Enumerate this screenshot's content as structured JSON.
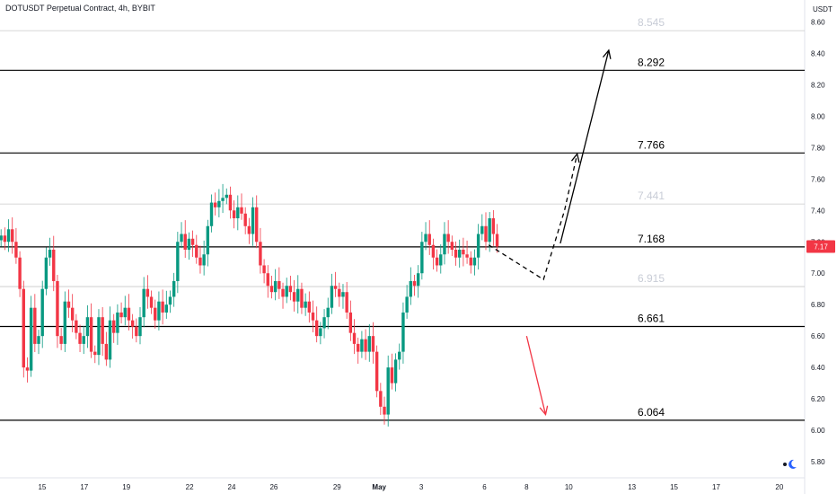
{
  "header": {
    "title": "DOTUSDT Perpetual Contract, 4h, BYBIT"
  },
  "chart_data": {
    "type": "candlestick",
    "title": "DOTUSDT Perpetual Contract, 4h, BYBIT",
    "y_unit": "USDT",
    "ylim": [
      5.72,
      8.66
    ],
    "y_ticks": [
      "8.60",
      "8.40",
      "8.20",
      "8.00",
      "7.80",
      "7.60",
      "7.40",
      "7.20",
      "7.00",
      "6.80",
      "6.60",
      "6.40",
      "6.20",
      "6.00",
      "5.80"
    ],
    "x_tick_labels": [
      "15",
      "17",
      "19",
      "22",
      "24",
      "26",
      "29",
      "May",
      "3",
      "6",
      "8",
      "10",
      "13",
      "15",
      "17",
      "20"
    ],
    "x_tick_days": [
      15,
      17,
      19,
      22,
      24,
      26,
      29,
      31,
      33,
      36,
      38,
      40,
      43,
      45,
      47,
      50
    ],
    "xlim_days": [
      13,
      51.2
    ],
    "last_price": {
      "label": "7.17",
      "value": 7.17,
      "color": "#f23645"
    },
    "levels": [
      {
        "label": "8.545",
        "value": 8.545,
        "style": "faint"
      },
      {
        "label": "8.292",
        "value": 8.292,
        "style": "strong"
      },
      {
        "label": "7.766",
        "value": 7.766,
        "style": "strong"
      },
      {
        "label": "7.441",
        "value": 7.441,
        "style": "faint"
      },
      {
        "label": "7.168",
        "value": 7.168,
        "style": "strong"
      },
      {
        "label": "6.915",
        "value": 6.915,
        "style": "faint"
      },
      {
        "label": "6.661",
        "value": 6.661,
        "style": "strong"
      },
      {
        "label": "6.064",
        "value": 6.064,
        "style": "strong"
      }
    ],
    "closes": [
      7.24,
      7.2,
      7.28,
      7.2,
      7.1,
      6.9,
      6.4,
      6.38,
      6.78,
      6.55,
      6.6,
      6.9,
      7.1,
      7.15,
      6.95,
      6.6,
      6.55,
      6.82,
      6.78,
      6.7,
      6.62,
      6.55,
      6.6,
      6.72,
      6.5,
      6.48,
      6.72,
      6.55,
      6.45,
      6.7,
      6.62,
      6.75,
      6.72,
      6.78,
      6.7,
      6.66,
      6.6,
      6.72,
      6.9,
      6.85,
      6.78,
      6.7,
      6.82,
      6.75,
      6.8,
      6.85,
      6.95,
      7.2,
      7.25,
      7.15,
      7.22,
      7.18,
      7.1,
      7.05,
      7.12,
      7.3,
      7.45,
      7.42,
      7.46,
      7.48,
      7.5,
      7.4,
      7.35,
      7.42,
      7.38,
      7.3,
      7.25,
      7.42,
      7.2,
      7.05,
      7.0,
      6.92,
      6.88,
      6.95,
      6.9,
      6.85,
      6.92,
      6.88,
      6.82,
      6.9,
      6.78,
      6.82,
      6.75,
      6.7,
      6.6,
      6.65,
      6.72,
      6.78,
      6.92,
      6.9,
      6.85,
      6.88,
      6.75,
      6.62,
      6.55,
      6.5,
      6.58,
      6.5,
      6.6,
      6.5,
      6.25,
      6.15,
      6.1,
      6.4,
      6.3,
      6.45,
      6.5,
      6.75,
      6.85,
      6.95,
      6.92,
      7.0,
      7.2,
      7.25,
      7.18,
      7.1,
      7.05,
      7.12,
      7.25,
      7.2,
      7.15,
      7.1,
      7.15,
      7.12,
      7.1,
      7.05,
      7.1,
      7.25,
      7.3,
      7.2,
      7.35,
      7.25,
      7.17
    ],
    "annotations": [
      {
        "kind": "arrow",
        "line": "solid",
        "color": "#000000",
        "from": [
          39.6,
          7.19
        ],
        "to": [
          41.9,
          8.42
        ]
      },
      {
        "kind": "path",
        "line": "dashed",
        "color": "#000000",
        "points": [
          [
            36.2,
            7.18
          ],
          [
            38.8,
            6.96
          ],
          [
            39.8,
            7.4
          ],
          [
            40.4,
            7.76
          ]
        ]
      },
      {
        "kind": "arrow",
        "line": "solid",
        "color": "#f23645",
        "from": [
          38.0,
          6.6
        ],
        "to": [
          38.9,
          6.1
        ]
      }
    ]
  }
}
